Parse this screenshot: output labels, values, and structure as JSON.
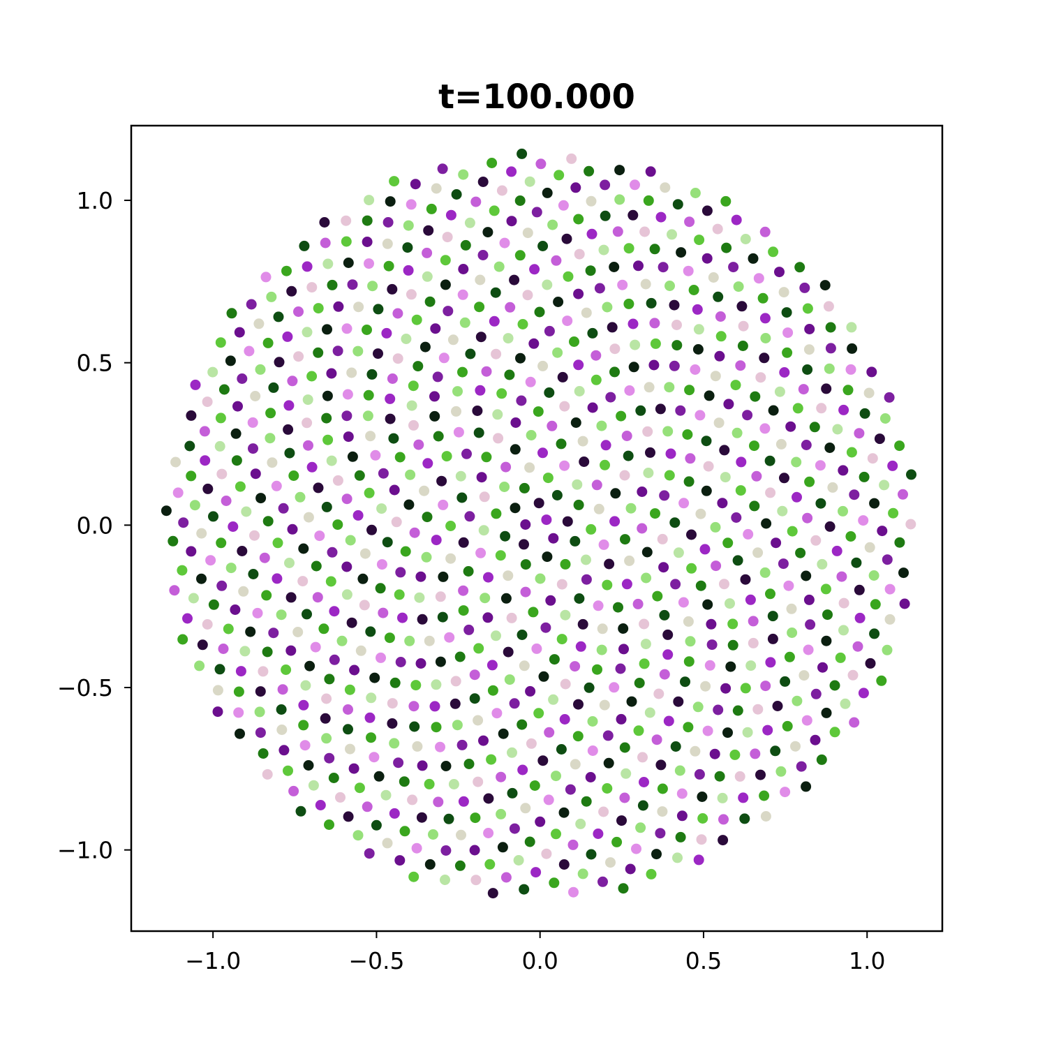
{
  "chart_data": {
    "type": "scatter",
    "title": "t=100.000",
    "xlabel": "",
    "ylabel": "",
    "xlim": [
      -1.25,
      1.23
    ],
    "ylim": [
      -1.25,
      1.23
    ],
    "xticks": [
      -1.0,
      -0.5,
      0.0,
      0.5,
      1.0
    ],
    "yticks": [
      -1.0,
      -0.5,
      0.0,
      0.5,
      1.0
    ],
    "xtick_labels": [
      "−1.0",
      "−0.5",
      "0.0",
      "0.5",
      "1.0"
    ],
    "ytick_labels": [
      "−1.0",
      "−0.5",
      "0.0",
      "0.5",
      "1.0"
    ],
    "grid": false,
    "legend": "none",
    "layout": "approximately 1000 points packed uniformly in a disc of radius about 1.15 centred at (0, 0), in a spiral pattern",
    "point_count": 1000,
    "disc_radius": 1.15,
    "palette": [
      "#9c27c4",
      "#6b0f8e",
      "#2a0a3a",
      "#0b1f10",
      "#0e4d12",
      "#1e7a12",
      "#3aa61e",
      "#5ec83a",
      "#96e07a",
      "#b9e5a4",
      "#d9d8c6",
      "#e6c4d6",
      "#e08ce8",
      "#c45ed8",
      "#7d1fa0"
    ]
  }
}
